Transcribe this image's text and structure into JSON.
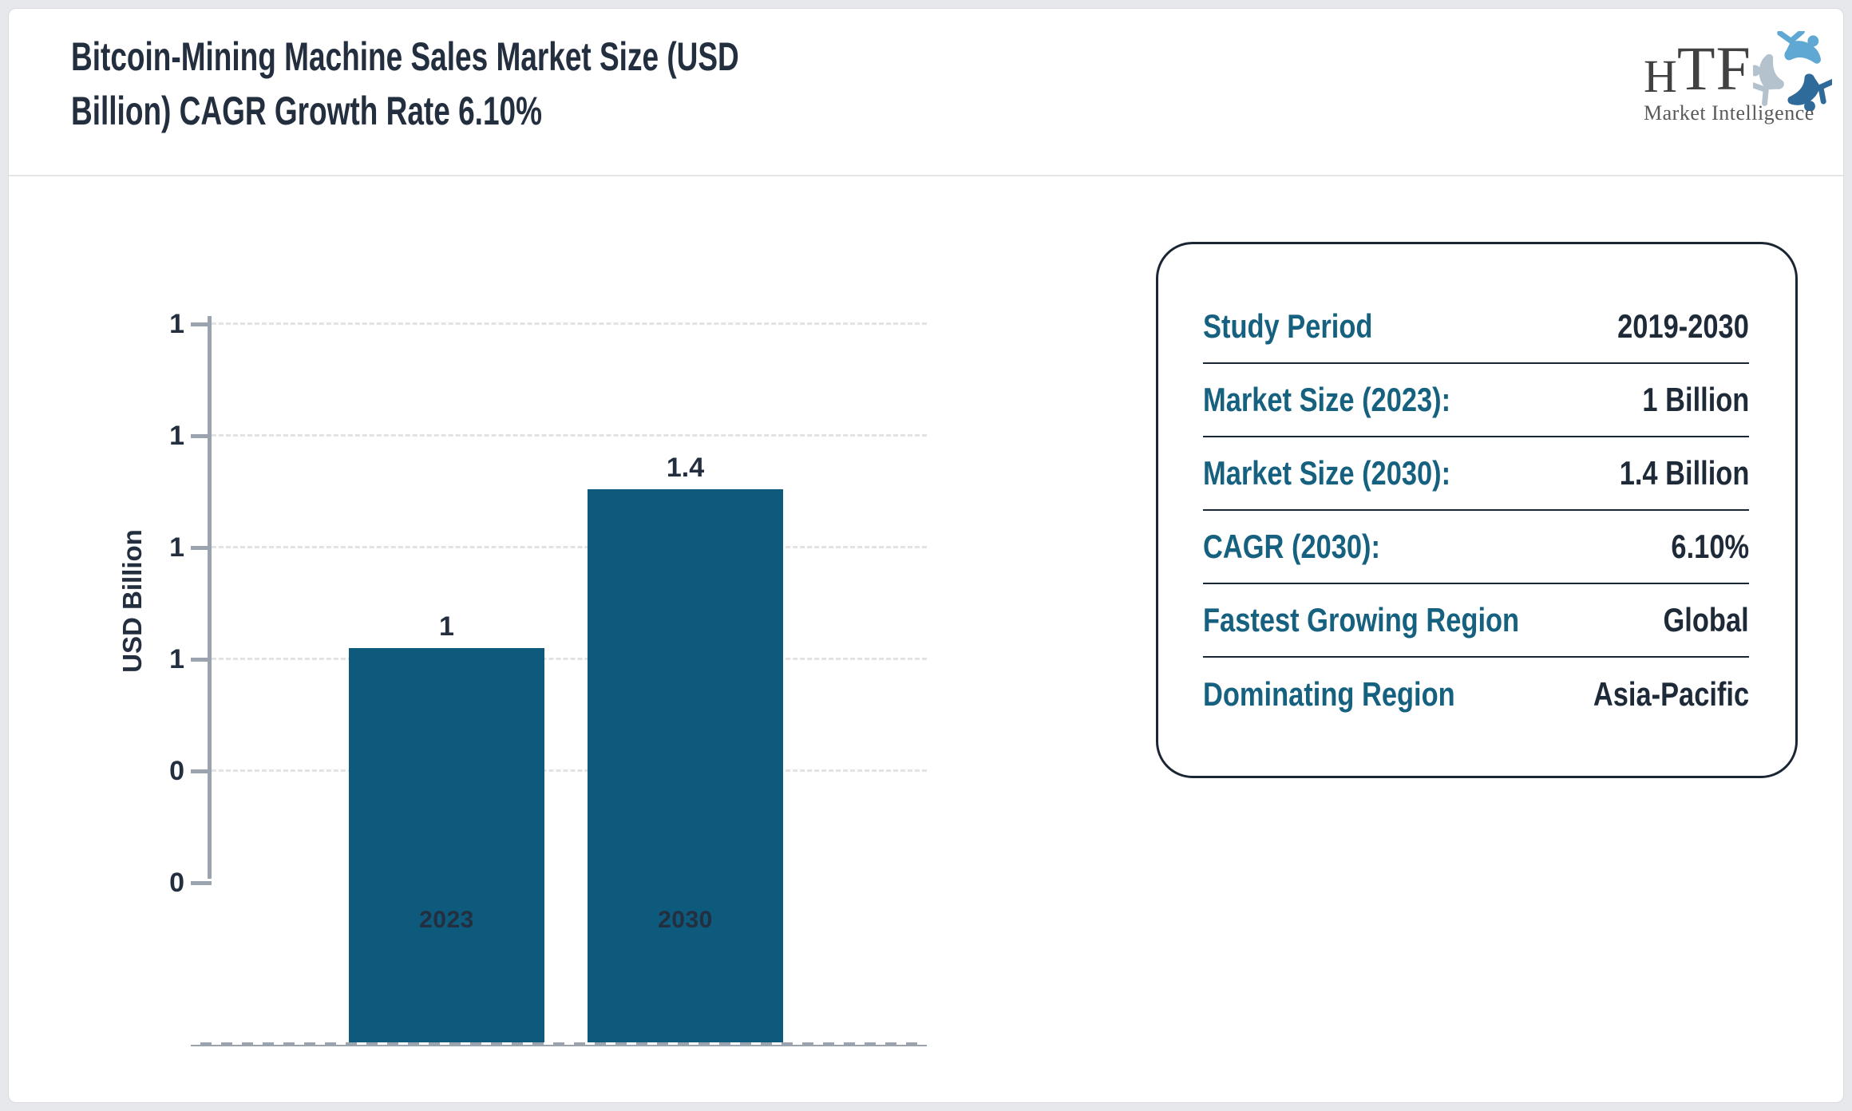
{
  "header": {
    "title_line1": "Bitcoin-Mining Machine Sales Market Size (USD",
    "title_line2": "Billion) CAGR Growth Rate 6.10%"
  },
  "logo": {
    "abbr_h": "H",
    "abbr_tf": "TF",
    "subtitle": "Market Intelligence"
  },
  "chart_data": {
    "type": "bar",
    "title": "Bitcoin-Mining Machine Sales Market Size (USD Billion) CAGR Growth Rate 6.10%",
    "categories": [
      "2023",
      "2030"
    ],
    "values": [
      1,
      1.4
    ],
    "bar_labels": [
      "1",
      "1.4"
    ],
    "xlabel": "",
    "ylabel": "USD Billion",
    "ylim": [
      0,
      1.4
    ],
    "yticks_top_down": [
      "1",
      "1",
      "1",
      "1",
      "0",
      "0"
    ],
    "grid": "horizontal-dashed",
    "legend": "none",
    "bar_color": "#0E5A7D"
  },
  "info_panel": {
    "rows": [
      {
        "label": "Study Period",
        "value": "2019-2030"
      },
      {
        "label": "Market Size (2023):",
        "value": "1 Billion"
      },
      {
        "label": "Market Size (2030):",
        "value": "1.4 Billion"
      },
      {
        "label": "CAGR (2030):",
        "value": "6.10%"
      },
      {
        "label": "Fastest Growing Region",
        "value": "Global"
      },
      {
        "label": "Dominating Region",
        "value": "Asia-Pacific"
      }
    ]
  },
  "colors": {
    "bar": "#0E5A7D",
    "accent_teal": "#15617F",
    "dark_text": "#232E3F",
    "axis_gray": "#9AA3AE",
    "page_background": "#E7E8EB"
  }
}
